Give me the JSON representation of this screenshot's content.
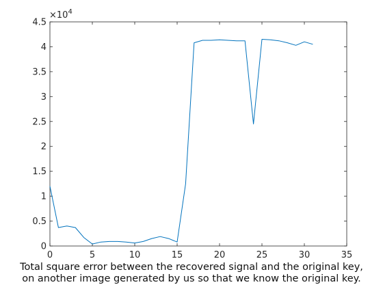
{
  "chart_data": {
    "type": "line",
    "title": "",
    "xlabel": "",
    "ylabel": "",
    "xlim": [
      0,
      35
    ],
    "ylim": [
      0,
      4.5
    ],
    "y_exponent_label": "×10",
    "y_exponent_power": "4",
    "xticks": [
      "0",
      "5",
      "10",
      "15",
      "20",
      "25",
      "30",
      "35"
    ],
    "yticks": [
      "0",
      "0.5",
      "1",
      "1.5",
      "2",
      "2.5",
      "3",
      "3.5",
      "4",
      "4.5"
    ],
    "grid": false,
    "legend": "none",
    "series": [
      {
        "color": "#0072BD",
        "x": [
          0,
          1,
          2,
          3,
          4,
          5,
          6,
          7,
          8,
          9,
          10,
          11,
          12,
          13,
          14,
          15,
          16,
          17,
          18,
          19,
          20,
          21,
          22,
          23,
          24,
          25,
          26,
          27,
          28,
          29,
          30,
          31
        ],
        "y": [
          1.2,
          0.37,
          0.4,
          0.37,
          0.17,
          0.04,
          0.08,
          0.09,
          0.09,
          0.08,
          0.06,
          0.09,
          0.15,
          0.19,
          0.15,
          0.08,
          1.25,
          4.08,
          4.13,
          4.13,
          4.14,
          4.13,
          4.12,
          4.12,
          2.45,
          4.15,
          4.14,
          4.12,
          4.08,
          4.03,
          4.1,
          4.05
        ]
      }
    ]
  },
  "caption": {
    "line1": "Total square error between the recovered signal and the original key,",
    "line2": "on another image generated by us so that we know the original key."
  }
}
